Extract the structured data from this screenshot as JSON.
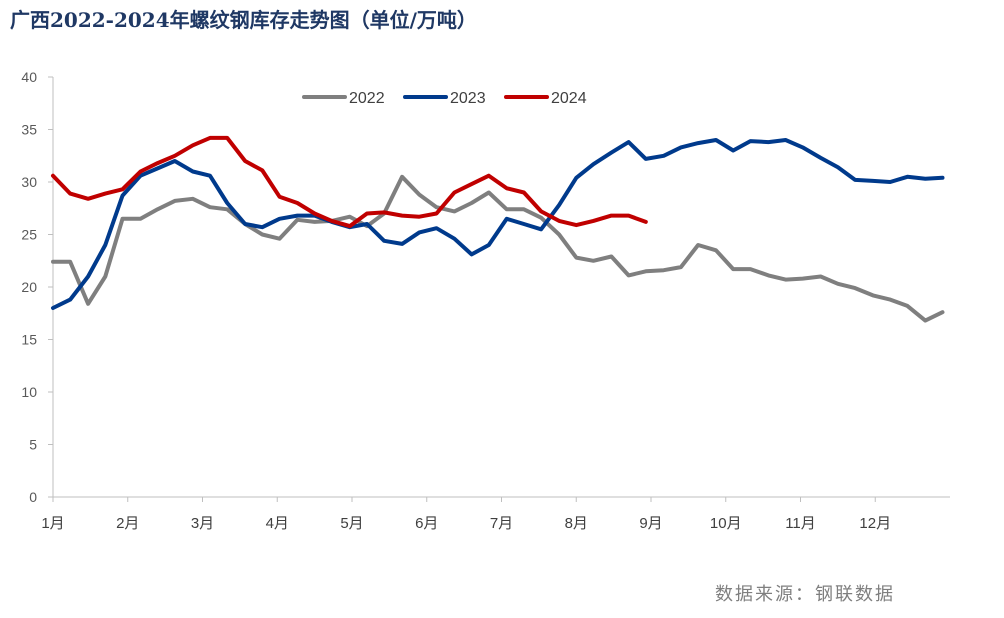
{
  "title": "广西2022-2024年螺纹钢库存走势图（单位/万吨）",
  "source": "数据来源：钢联数据",
  "chart_data": {
    "type": "line",
    "title": "广西2022-2024年螺纹钢库存走势图（单位/万吨）",
    "xlabel": "",
    "ylabel": "",
    "ylim": [
      0,
      40
    ],
    "yticks": [
      0,
      5,
      10,
      15,
      20,
      25,
      30,
      35,
      40
    ],
    "xlim": [
      1,
      13
    ],
    "xticks": [
      {
        "value": 1,
        "label": "1月"
      },
      {
        "value": 2,
        "label": "2月"
      },
      {
        "value": 3,
        "label": "3月"
      },
      {
        "value": 4,
        "label": "4月"
      },
      {
        "value": 5,
        "label": "5月"
      },
      {
        "value": 6,
        "label": "6月"
      },
      {
        "value": 7,
        "label": "7月"
      },
      {
        "value": 8,
        "label": "8月"
      },
      {
        "value": 9,
        "label": "9月"
      },
      {
        "value": 10,
        "label": "10月"
      },
      {
        "value": 11,
        "label": "11月"
      },
      {
        "value": 12,
        "label": "12月"
      }
    ],
    "grid": false,
    "legend": "top-center",
    "series": [
      {
        "name": "2022",
        "color": "#7f7f7f",
        "x": [
          1.0,
          1.23,
          1.47,
          1.7,
          1.93,
          2.17,
          2.4,
          2.63,
          2.87,
          3.1,
          3.33,
          3.57,
          3.8,
          4.03,
          4.27,
          4.5,
          4.73,
          4.97,
          5.2,
          5.43,
          5.67,
          5.9,
          6.13,
          6.37,
          6.6,
          6.83,
          7.07,
          7.3,
          7.53,
          7.77,
          8.0,
          8.23,
          8.47,
          8.7,
          8.93,
          9.17,
          9.4,
          9.63,
          9.87,
          10.1,
          10.33,
          10.57,
          10.8,
          11.03,
          11.27,
          11.5,
          11.73,
          11.97,
          12.2,
          12.43,
          12.67,
          12.9
        ],
        "values": [
          22.4,
          22.4,
          18.4,
          21.0,
          26.5,
          26.5,
          27.4,
          28.2,
          28.4,
          27.6,
          27.4,
          26.0,
          25.0,
          24.6,
          26.4,
          26.2,
          26.3,
          26.7,
          25.8,
          27.0,
          30.5,
          28.8,
          27.6,
          27.2,
          28.0,
          29.0,
          27.4,
          27.4,
          26.6,
          25.0,
          22.8,
          22.5,
          22.9,
          21.1,
          21.5,
          21.6,
          21.9,
          24.0,
          23.5,
          21.7,
          21.7,
          21.1,
          20.7,
          20.8,
          21.0,
          20.3,
          19.9,
          19.2,
          18.8,
          18.2,
          16.8,
          17.6
        ]
      },
      {
        "name": "2023",
        "color": "#003a8c",
        "x": [
          1.0,
          1.23,
          1.47,
          1.7,
          1.93,
          2.17,
          2.4,
          2.63,
          2.87,
          3.1,
          3.33,
          3.57,
          3.8,
          4.03,
          4.27,
          4.5,
          4.73,
          4.97,
          5.2,
          5.43,
          5.67,
          5.9,
          6.13,
          6.37,
          6.6,
          6.83,
          7.07,
          7.3,
          7.53,
          7.77,
          8.0,
          8.23,
          8.47,
          8.7,
          8.93,
          9.17,
          9.4,
          9.63,
          9.87,
          10.1,
          10.33,
          10.57,
          10.8,
          11.03,
          11.27,
          11.5,
          11.73,
          11.97,
          12.2,
          12.43,
          12.67,
          12.9
        ],
        "values": [
          18.0,
          18.8,
          21.0,
          24.0,
          28.7,
          30.6,
          31.3,
          32.0,
          31.0,
          30.6,
          28.0,
          26.0,
          25.7,
          26.5,
          26.8,
          26.8,
          26.2,
          25.7,
          26.0,
          24.4,
          24.1,
          25.2,
          25.6,
          24.6,
          23.1,
          24.0,
          26.5,
          26.0,
          25.5,
          27.8,
          30.4,
          31.7,
          32.8,
          33.8,
          32.2,
          32.5,
          33.3,
          33.7,
          34.0,
          33.0,
          33.9,
          33.8,
          34.0,
          33.3,
          32.3,
          31.4,
          30.2,
          30.1,
          30.0,
          30.5,
          30.3,
          30.4
        ]
      },
      {
        "name": "2024",
        "color": "#c00000",
        "x": [
          1.0,
          1.23,
          1.47,
          1.7,
          1.93,
          2.17,
          2.4,
          2.63,
          2.87,
          3.1,
          3.33,
          3.57,
          3.8,
          4.03,
          4.27,
          4.5,
          4.73,
          4.97,
          5.2,
          5.43,
          5.67,
          5.9,
          6.13,
          6.37,
          6.6,
          6.83,
          7.07,
          7.3,
          7.53,
          7.77,
          8.0,
          8.23,
          8.47,
          8.7,
          8.93
        ],
        "values": [
          30.6,
          28.9,
          28.4,
          28.9,
          29.3,
          31.0,
          31.8,
          32.5,
          33.5,
          34.2,
          34.2,
          32.0,
          31.1,
          28.6,
          28.0,
          27.0,
          26.3,
          25.8,
          27.0,
          27.1,
          26.8,
          26.7,
          27.0,
          29.0,
          29.8,
          30.6,
          29.4,
          29.0,
          27.2,
          26.3,
          25.9,
          26.3,
          26.8,
          26.8,
          26.2
        ]
      }
    ]
  }
}
